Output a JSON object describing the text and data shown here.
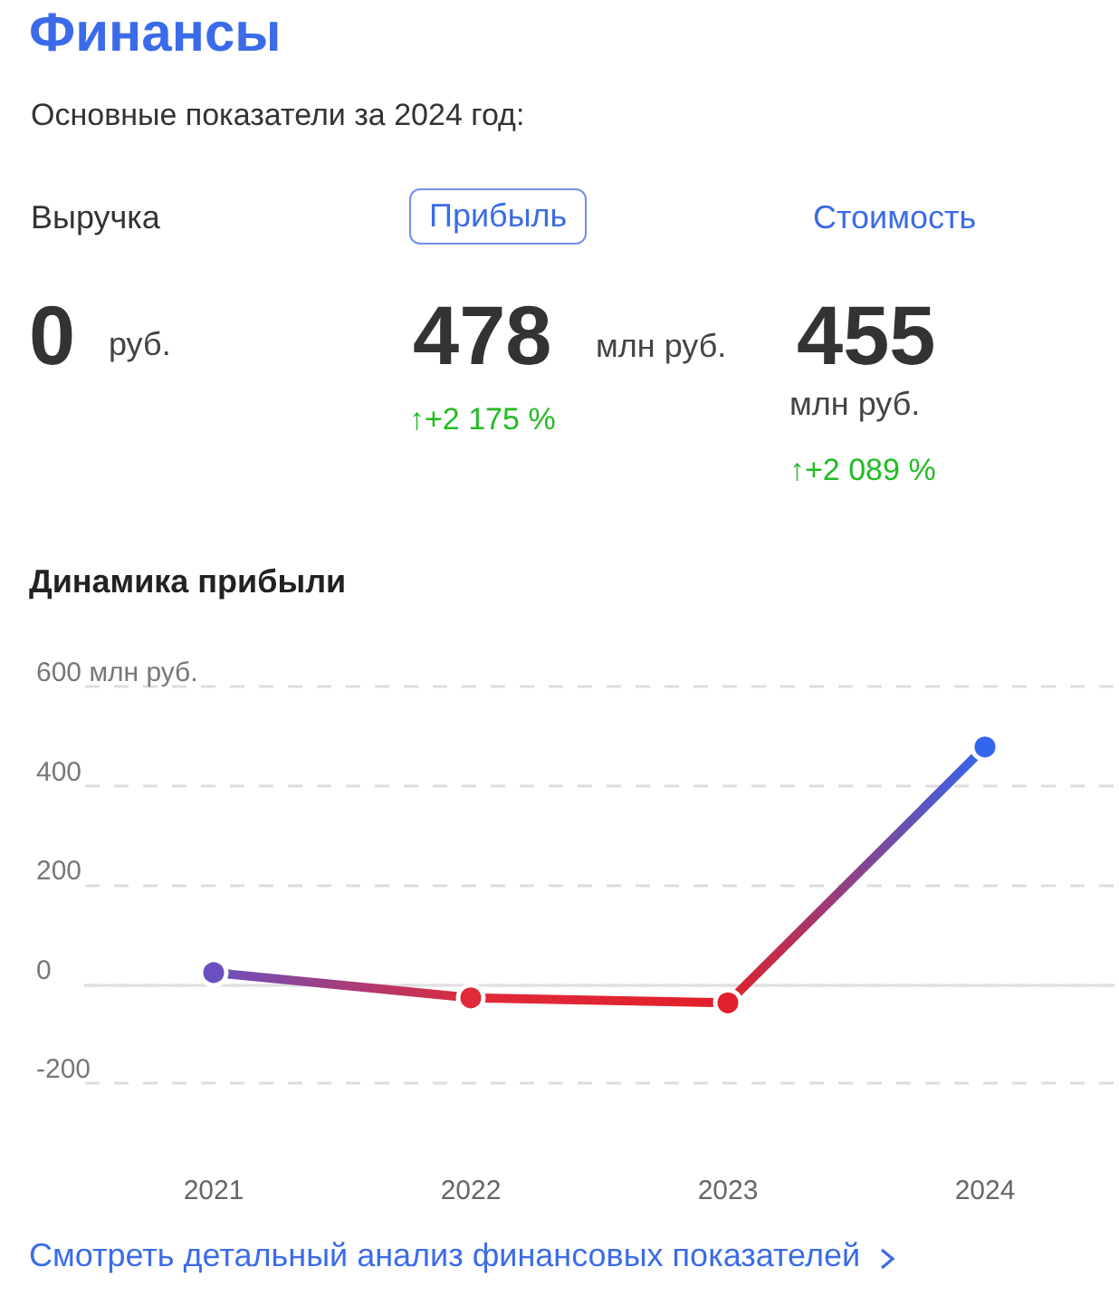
{
  "chart_data": {
    "type": "line",
    "title": "Финансы",
    "subtitle": "Основные показатели за 2024 год:",
    "annotations": [
      "Выручка",
      "Прибыль",
      "Стоимость",
      "0",
      "руб.",
      "478",
      "млн руб.",
      "↑+2 175 %",
      "455",
      "млн руб.",
      "↑+2 089 %",
      "Динамика прибыли",
      "Смотреть детальный анализ финансовых показателей"
    ],
    "categories": [
      "2021",
      "2022",
      "2023",
      "2024"
    ],
    "series": [
      {
        "colors": [
          "#6a50c0",
          "#e02a3a",
          "#e0202a",
          "#3366ee"
        ],
        "values": [
          23,
          -28,
          -38,
          478
        ]
      }
    ],
    "ylim": [
      -200,
      600
    ],
    "yticks": [
      -200,
      0,
      200,
      400,
      {
        "value": 600,
        "label": "600 млн руб."
      }
    ],
    "grid": "y",
    "marker": "circle",
    "line_style": "solid"
  }
}
